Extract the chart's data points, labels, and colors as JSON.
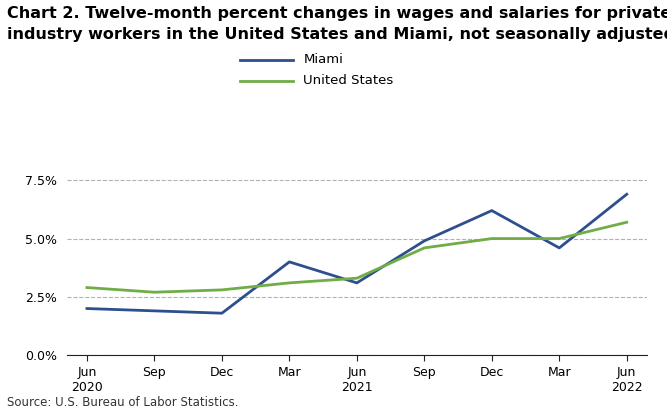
{
  "title_line1": "Chart 2. Twelve-month percent changes in wages and salaries for private",
  "title_line2": "industry workers in the United States and Miami, not seasonally adjusted",
  "source": "Source: U.S. Bureau of Labor Statistics.",
  "x_labels": [
    "Jun\n2020",
    "Sep",
    "Dec",
    "Mar",
    "Jun\n2021",
    "Sep",
    "Dec",
    "Mar",
    "Jun\n2022"
  ],
  "miami_values": [
    2.0,
    1.9,
    1.8,
    4.0,
    3.1,
    4.9,
    6.2,
    4.6,
    6.9
  ],
  "us_values": [
    2.9,
    2.7,
    2.8,
    3.1,
    3.3,
    4.6,
    5.0,
    5.0,
    5.7
  ],
  "miami_color": "#2e4f8e",
  "us_color": "#70ad47",
  "ylim": [
    0.0,
    8.5
  ],
  "yticks": [
    0.0,
    2.5,
    5.0,
    7.5
  ],
  "ytick_labels": [
    "0.0%",
    "2.5%",
    "5.0%",
    "7.5%"
  ],
  "grid_color": "#aaaaaa",
  "background_color": "#ffffff",
  "legend_miami": "Miami",
  "legend_us": "United States",
  "title_fontsize": 11.5,
  "axis_fontsize": 9,
  "legend_fontsize": 9.5,
  "source_fontsize": 8.5,
  "line_width": 2.0
}
